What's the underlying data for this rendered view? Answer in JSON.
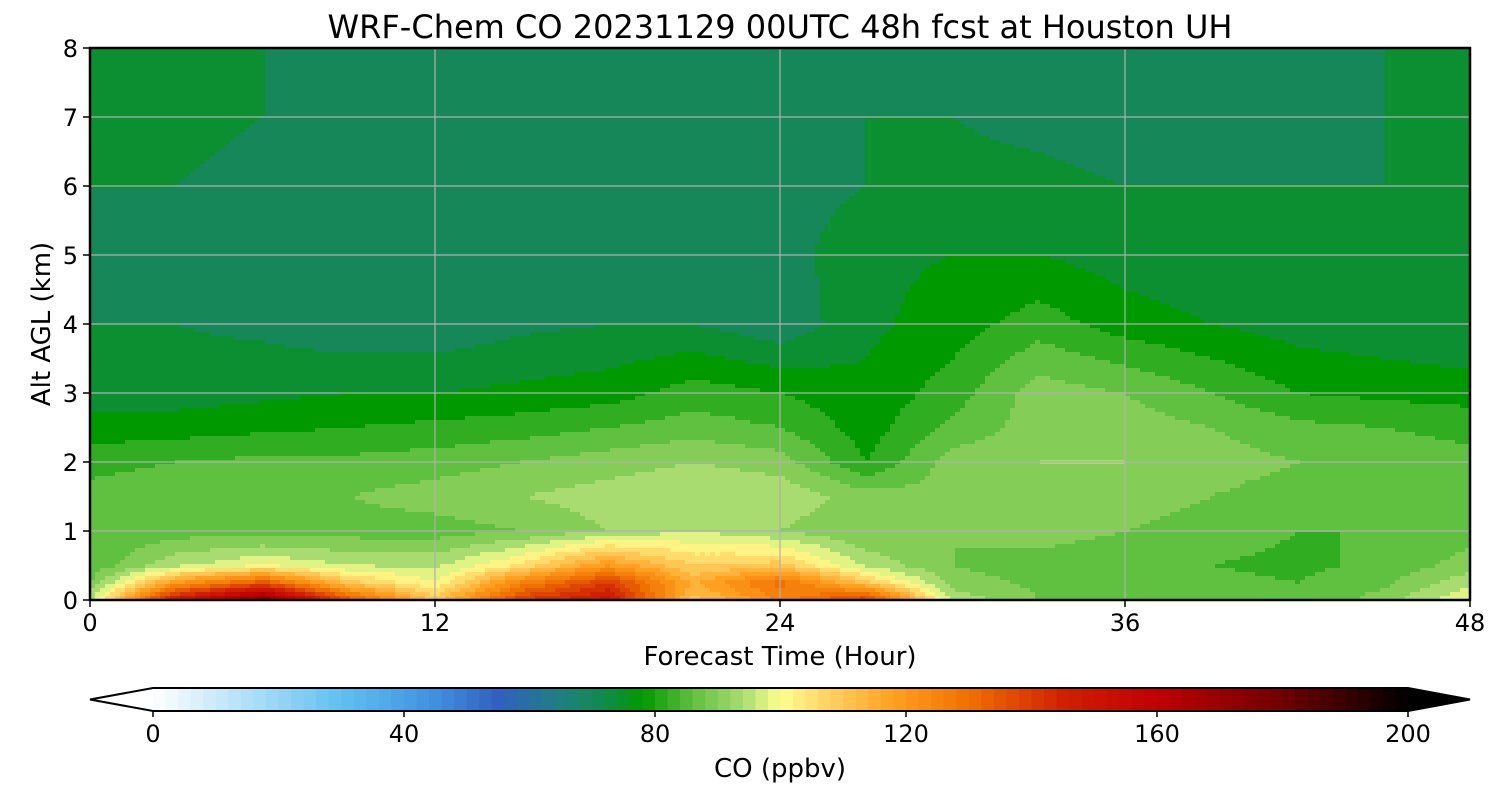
{
  "chart_data": {
    "type": "heatmap",
    "title": "WRF-Chem CO  20231129 00UTC 48h fcst at Houston UH",
    "xlabel": "Forecast Time (Hour)",
    "ylabel": "Alt AGL (km)",
    "xlim": [
      0,
      48
    ],
    "ylim": [
      0,
      8
    ],
    "x_ticks": [
      "0",
      "12",
      "24",
      "36",
      "48"
    ],
    "y_ticks": [
      "0",
      "1",
      "2",
      "3",
      "4",
      "5",
      "6",
      "7",
      "8"
    ],
    "grid": true,
    "x": [
      0,
      3,
      6,
      9,
      12,
      15,
      18,
      21,
      24,
      27,
      30,
      33,
      36,
      39,
      42,
      45,
      48
    ],
    "y": [
      0,
      0.25,
      0.5,
      1,
      1.5,
      2,
      2.5,
      3,
      4,
      5,
      6,
      7,
      8
    ],
    "z": [
      [
        95,
        150,
        175,
        135,
        110,
        140,
        150,
        110,
        125,
        140,
        95,
        88,
        86,
        85,
        84,
        90,
        100
      ],
      [
        88,
        120,
        135,
        110,
        100,
        125,
        140,
        115,
        130,
        110,
        90,
        87,
        86,
        85,
        84,
        87,
        95
      ],
      [
        85,
        95,
        100,
        96,
        95,
        105,
        120,
        108,
        110,
        95,
        88,
        86,
        85,
        84,
        83,
        85,
        90
      ],
      [
        84,
        86,
        86,
        86,
        86,
        88,
        92,
        96,
        92,
        88,
        88,
        90,
        88,
        86,
        84,
        84,
        86
      ],
      [
        86,
        88,
        87,
        88,
        90,
        92,
        94,
        96,
        95,
        90,
        89,
        90,
        90,
        88,
        86,
        86,
        86
      ],
      [
        82,
        84,
        85,
        85,
        86,
        88,
        90,
        92,
        90,
        80,
        90,
        92,
        92,
        90,
        88,
        86,
        85
      ],
      [
        78,
        78,
        79,
        80,
        81,
        82,
        84,
        86,
        84,
        78,
        85,
        90,
        90,
        88,
        85,
        84,
        83
      ],
      [
        74,
        74,
        75,
        76,
        76,
        77,
        78,
        82,
        80,
        77,
        82,
        90,
        88,
        84,
        80,
        79,
        78
      ],
      [
        72,
        72,
        71,
        69,
        69,
        71,
        72,
        72,
        69,
        75,
        78,
        82,
        78,
        76,
        74,
        73,
        72
      ],
      [
        72,
        70,
        71,
        70,
        69,
        70,
        70,
        72,
        70,
        75,
        76,
        76,
        74,
        73,
        73,
        72,
        72
      ],
      [
        72,
        72,
        71,
        71,
        70,
        69,
        69,
        71,
        70,
        72,
        73,
        73,
        72,
        72,
        72,
        72,
        72
      ],
      [
        73,
        73,
        72,
        71,
        70,
        69,
        69,
        70,
        71,
        72,
        72,
        71,
        70,
        71,
        71,
        72,
        72
      ],
      [
        73,
        73,
        72,
        72,
        71,
        70,
        70,
        71,
        71,
        71,
        71,
        69,
        68,
        70,
        71,
        72,
        72
      ]
    ],
    "colorbar": {
      "label": "CO  (ppbv)",
      "min": 0,
      "max": 200,
      "ticks": [
        "0",
        "40",
        "80",
        "120",
        "160",
        "200"
      ],
      "extend": "both",
      "placement": "bottom",
      "colors": [
        [
          0,
          "#ffffff"
        ],
        [
          15,
          "#b0e0f8"
        ],
        [
          30,
          "#60c0f0"
        ],
        [
          45,
          "#4090e0"
        ],
        [
          55,
          "#3060c0"
        ],
        [
          65,
          "#208080"
        ],
        [
          72,
          "#108a4a"
        ],
        [
          78,
          "#009900"
        ],
        [
          86,
          "#60c040"
        ],
        [
          94,
          "#a8dc70"
        ],
        [
          100,
          "#ffff90"
        ],
        [
          108,
          "#ffd060"
        ],
        [
          118,
          "#ffa020"
        ],
        [
          130,
          "#f07000"
        ],
        [
          145,
          "#d02000"
        ],
        [
          160,
          "#c00000"
        ],
        [
          180,
          "#700000"
        ],
        [
          200,
          "#000000"
        ]
      ]
    }
  }
}
